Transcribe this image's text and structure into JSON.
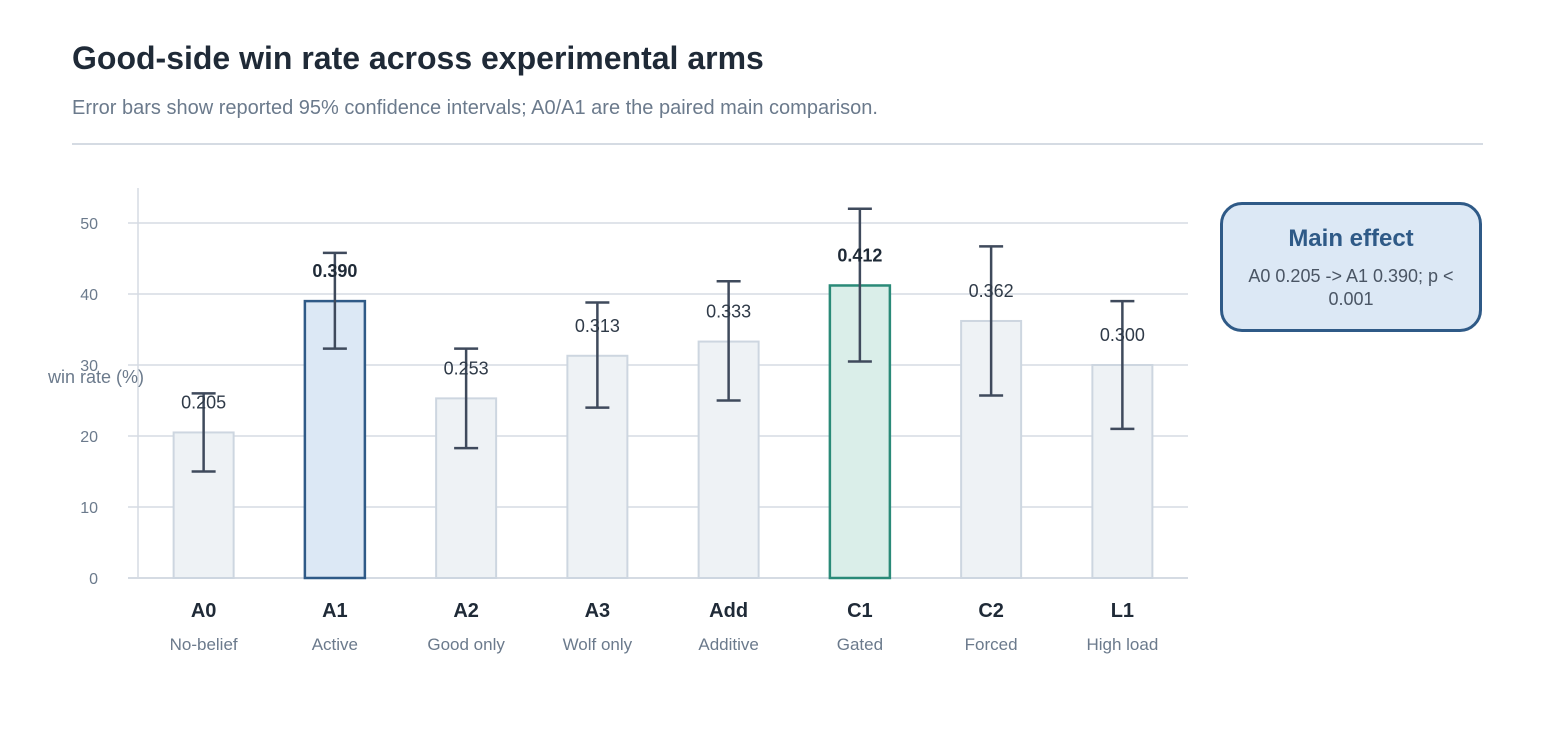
{
  "header": {
    "title": "Good-side win rate across experimental arms",
    "subtitle": "Error bars show reported 95% confidence intervals; A0/A1 are the paired main comparison."
  },
  "callout": {
    "title": "Main effect",
    "body": "A0 0.205 -> A1 0.390; p < 0.001"
  },
  "colors": {
    "bar_default_fill": "#eef2f5",
    "bar_default_stroke": "#cdd6e0",
    "bar_active_fill": "#dce8f5",
    "bar_active_stroke": "#2f5a87",
    "bar_gated_fill": "#daeee9",
    "bar_gated_stroke": "#2a8a78",
    "error_bar": "#3f4a5c",
    "grid": "#d5dbe3",
    "axis_text": "#6b7a8c"
  },
  "chart_data": {
    "type": "bar",
    "title": "Good-side win rate across experimental arms",
    "subtitle": "Error bars show reported 95% confidence intervals; A0/A1 are the paired main comparison.",
    "ylabel": "win rate (%)",
    "xlabel": "",
    "ylim": [
      0,
      55
    ],
    "yticks": [
      0,
      10,
      20,
      30,
      40,
      50
    ],
    "grid": true,
    "categories": [
      "A0",
      "A1",
      "A2",
      "A3",
      "Add",
      "C1",
      "C2",
      "L1"
    ],
    "sublabels": [
      "No-belief",
      "Active",
      "Good only",
      "Wolf only",
      "Additive",
      "Gated",
      "Forced",
      "High load"
    ],
    "values": [
      20.5,
      39.0,
      25.3,
      31.3,
      33.3,
      41.2,
      36.2,
      30.0
    ],
    "value_labels": [
      "0.205",
      "0.390",
      "0.253",
      "0.313",
      "0.333",
      "0.412",
      "0.362",
      "0.300"
    ],
    "ci_low": [
      15.0,
      32.3,
      18.3,
      24.0,
      25.0,
      30.5,
      25.7,
      21.0
    ],
    "ci_high": [
      26.0,
      45.8,
      32.3,
      38.8,
      41.8,
      52.0,
      46.7,
      39.0
    ],
    "highlight": [
      "default",
      "active",
      "default",
      "default",
      "default",
      "gated",
      "default",
      "default"
    ]
  }
}
